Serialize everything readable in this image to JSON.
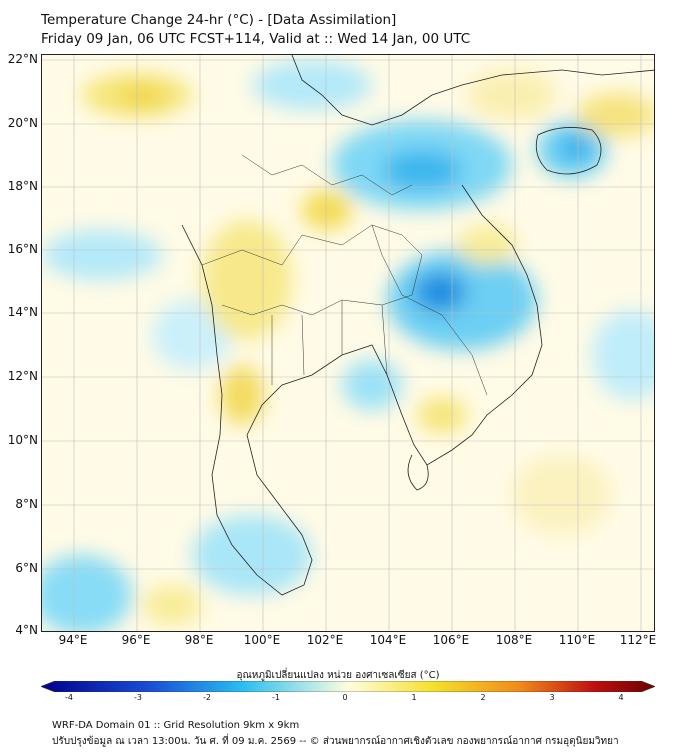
{
  "header": {
    "title_line1": "Temperature Change 24-hr (°C) - [Data Assimilation]",
    "title_line2": "Friday 09 Jan, 06 UTC FCST+114, Valid at :: Wed 14 Jan, 00 UTC"
  },
  "axes": {
    "lat_labels": [
      "22°N",
      "20°N",
      "18°N",
      "16°N",
      "14°N",
      "12°N",
      "10°N",
      "8°N",
      "6°N",
      "4°N"
    ],
    "lon_labels": [
      "94°E",
      "96°E",
      "98°E",
      "100°E",
      "102°E",
      "104°E",
      "106°E",
      "108°E",
      "110°E",
      "112°E"
    ]
  },
  "colorbar": {
    "title": "อุณหภูมิเปลี่ยนแปลง หน่วย องศาเซลเซียส (°C)",
    "ticks": [
      "-4",
      "-3",
      "-2",
      "-1",
      "0",
      "1",
      "2",
      "3",
      "4"
    ],
    "colors": {
      "deep_blue": "#00008b",
      "blue": "#1a4fd6",
      "cyan": "#29c0f0",
      "pale": "#fffde0",
      "yellow": "#f5e02a",
      "orange": "#f08a1a",
      "red": "#c01010",
      "dark_red": "#6b0000"
    }
  },
  "footer": {
    "line1": "WRF-DA Domain 01 :: Grid Resolution 9km x 9km",
    "line2": "ปรับปรุงข้อมูล ณ เวลา 13:00น. วัน ศ. ที่ 09 ม.ค. 2569 -- © ส่วนพยากรณ์อากาศเชิงตัวเลข กองพยากรณ์อากาศ กรมอุตุนิยมวิทยา"
  }
}
